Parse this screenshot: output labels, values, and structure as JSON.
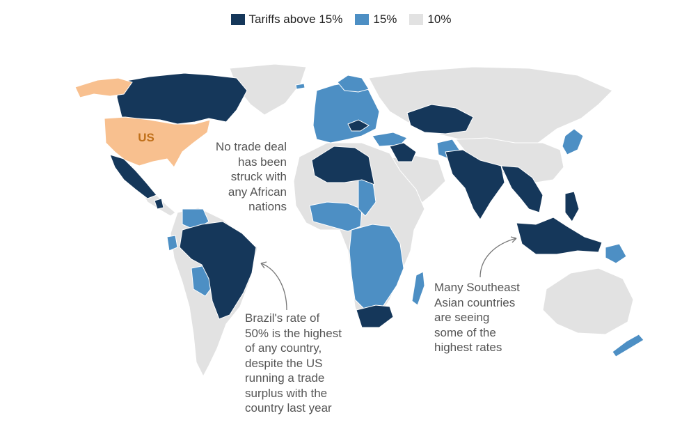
{
  "legend": {
    "items": [
      {
        "label": "Tariffs above 15%",
        "color": "#15375a"
      },
      {
        "label": "15%",
        "color": "#4d8fc4"
      },
      {
        "label": "10%",
        "color": "#e2e2e2"
      }
    ]
  },
  "map_labels": {
    "us": "US"
  },
  "colors": {
    "us": "#f8c08f",
    "us_label": "#c0701a",
    "high": "#15375a",
    "mid": "#4d8fc4",
    "base": "#e2e2e2",
    "annotation_line": "#777777"
  },
  "annotations": {
    "africa": [
      "No trade deal",
      "has been",
      "struck with",
      "any African",
      "nations"
    ],
    "brazil": [
      "Brazil's rate of",
      "50% is the highest",
      "of any country,",
      "despite the US",
      "running a trade",
      "surplus with the",
      "country last year"
    ],
    "southeast_asia": [
      "Many Southeast",
      "Asian countries",
      "are seeing",
      "some of the",
      "highest rates"
    ]
  }
}
